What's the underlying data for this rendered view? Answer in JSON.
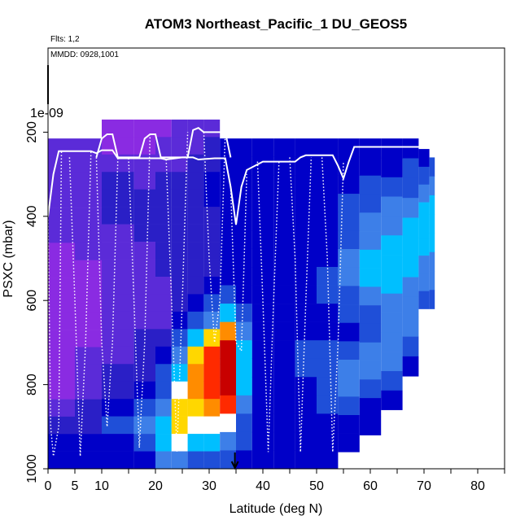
{
  "chart_data": {
    "type": "heatmap",
    "title": "ATOM3 Northeast_Pacific_1 DU_GEOS5",
    "flights_label": "Flts: 1,2",
    "date_label": "MMDD: 0928,1001",
    "xlabel": "Latitude (deg N)",
    "ylabel": "PSXC (mbar)",
    "xlim": [
      0,
      85
    ],
    "ylim": [
      1000,
      0
    ],
    "x_ticks": [
      0,
      5,
      10,
      20,
      30,
      40,
      50,
      60,
      70,
      80
    ],
    "y_ticks": [
      200,
      400,
      600,
      800,
      1000
    ],
    "color_scale_label": "1e-09",
    "marker_latitude": 34.8,
    "colormap": [
      "#8a2be2",
      "#5b2bd8",
      "#2a1fc6",
      "#0000c8",
      "#1f4fd8",
      "#3d7fe8",
      "#00bfff",
      "#ffffff",
      "#ffd700",
      "#ff8c00",
      "#ff2a00",
      "#c80000"
    ],
    "grid": false,
    "legend": "none",
    "cells": [
      {
        "x0": 0,
        "x1": 5,
        "p0": 215,
        "p1": 1000,
        "levels": [
          1,
          1,
          1,
          1,
          1,
          1,
          0,
          0,
          0,
          0,
          0,
          0,
          0,
          0,
          0,
          1,
          2,
          3,
          3
        ]
      },
      {
        "x0": 5,
        "x1": 10,
        "p0": 215,
        "p1": 1000,
        "levels": [
          1,
          1,
          1,
          1,
          1,
          1,
          1,
          0,
          0,
          0,
          0,
          0,
          1,
          1,
          1,
          2,
          2,
          3,
          3
        ]
      },
      {
        "x0": 10,
        "x1": 16,
        "p0": 170,
        "p1": 1000,
        "levels": [
          0,
          0,
          1,
          2,
          2,
          2,
          1,
          1,
          1,
          1,
          1,
          1,
          1,
          1,
          2,
          2,
          3,
          4,
          3,
          3
        ]
      },
      {
        "x0": 16,
        "x1": 20,
        "p0": 170,
        "p1": 1000,
        "levels": [
          0,
          0,
          1,
          1,
          2,
          2,
          2,
          1,
          1,
          1,
          1,
          1,
          2,
          2,
          2,
          3,
          4,
          5,
          4,
          3
        ]
      },
      {
        "x0": 20,
        "x1": 23,
        "p0": 170,
        "p1": 1000,
        "levels": [
          0,
          1,
          1,
          2,
          2,
          2,
          2,
          2,
          2,
          1,
          1,
          1,
          2,
          3,
          4,
          4,
          5,
          6,
          6,
          5
        ]
      },
      {
        "x0": 23,
        "x1": 26,
        "p0": 170,
        "p1": 1000,
        "levels": [
          1,
          1,
          1,
          2,
          2,
          2,
          2,
          2,
          2,
          2,
          2,
          3,
          4,
          5,
          6,
          7,
          8,
          8,
          7,
          5
        ]
      },
      {
        "x0": 26,
        "x1": 29,
        "p0": 170,
        "p1": 1000,
        "levels": [
          1,
          1,
          2,
          2,
          2,
          2,
          2,
          2,
          2,
          2,
          3,
          4,
          6,
          8,
          9,
          9,
          8,
          7,
          6,
          4
        ]
      },
      {
        "x0": 29,
        "x1": 32,
        "p0": 170,
        "p1": 1000,
        "levels": [
          1,
          2,
          2,
          3,
          3,
          2,
          2,
          2,
          2,
          3,
          4,
          5,
          8,
          10,
          10,
          10,
          9,
          7,
          6,
          4
        ]
      },
      {
        "x0": 32,
        "x1": 35,
        "p0": 215,
        "p1": 1000,
        "levels": [
          3,
          3,
          3,
          3,
          3,
          3,
          3,
          3,
          4,
          6,
          9,
          11,
          11,
          11,
          10,
          7,
          5,
          4
        ]
      },
      {
        "x0": 35,
        "x1": 38,
        "p0": 215,
        "p1": 1000,
        "levels": [
          3,
          3,
          3,
          3,
          3,
          3,
          3,
          3,
          3,
          4,
          5,
          6,
          6,
          6,
          5,
          4,
          4,
          3
        ]
      },
      {
        "x0": 38,
        "x1": 42,
        "p0": 215,
        "p1": 1000,
        "levels": [
          3,
          3,
          3,
          3,
          3,
          3,
          3,
          3,
          3,
          3,
          3,
          3,
          3,
          3,
          3,
          3,
          3,
          3
        ]
      },
      {
        "x0": 42,
        "x1": 46,
        "p0": 215,
        "p1": 1000,
        "levels": [
          3,
          3,
          3,
          3,
          3,
          3,
          3,
          3,
          3,
          3,
          3,
          3,
          3,
          3,
          3,
          3,
          3,
          3
        ]
      },
      {
        "x0": 46,
        "x1": 50,
        "p0": 215,
        "p1": 1000,
        "levels": [
          3,
          3,
          3,
          3,
          3,
          3,
          3,
          3,
          3,
          3,
          3,
          4,
          4,
          3,
          3,
          3,
          3,
          3
        ]
      },
      {
        "x0": 50,
        "x1": 54,
        "p0": 215,
        "p1": 1000,
        "levels": [
          3,
          3,
          3,
          3,
          3,
          3,
          3,
          4,
          4,
          3,
          3,
          4,
          4,
          4,
          4,
          3,
          3,
          3
        ]
      },
      {
        "x0": 54,
        "x1": 58,
        "p0": 215,
        "p1": 960,
        "levels": [
          3,
          3,
          3,
          4,
          4,
          4,
          5,
          5,
          4,
          4,
          3,
          4,
          5,
          5,
          4,
          3,
          3
        ]
      },
      {
        "x0": 58,
        "x1": 62,
        "p0": 215,
        "p1": 920,
        "levels": [
          3,
          3,
          4,
          4,
          5,
          5,
          6,
          6,
          5,
          4,
          4,
          5,
          5,
          4,
          3,
          3
        ]
      },
      {
        "x0": 62,
        "x1": 66,
        "p0": 215,
        "p1": 860,
        "levels": [
          3,
          3,
          4,
          5,
          5,
          6,
          6,
          6,
          5,
          5,
          5,
          5,
          4,
          3
        ]
      },
      {
        "x0": 66,
        "x1": 69,
        "p0": 215,
        "p1": 780,
        "levels": [
          3,
          4,
          4,
          5,
          6,
          6,
          6,
          5,
          5,
          5,
          4,
          3
        ]
      },
      {
        "x0": 69,
        "x1": 71,
        "p0": 240,
        "p1": 620,
        "levels": [
          3,
          4,
          5,
          6,
          6,
          6,
          5,
          5,
          4
        ]
      },
      {
        "x0": 71,
        "x1": 72,
        "p0": 260,
        "p1": 620,
        "levels": [
          4,
          5,
          6,
          6,
          6,
          5,
          5,
          4
        ]
      }
    ],
    "flight_track_solid": [
      [
        0,
        400
      ],
      [
        1,
        300
      ],
      [
        2,
        245
      ],
      [
        8,
        245
      ],
      [
        9,
        250
      ],
      [
        10,
        243
      ],
      [
        12,
        243
      ],
      [
        13,
        262
      ],
      [
        18,
        262
      ],
      [
        21,
        262
      ],
      [
        22,
        265
      ],
      [
        25,
        260
      ],
      [
        27,
        260
      ],
      [
        28,
        265
      ],
      [
        31,
        262
      ],
      [
        33,
        262
      ],
      [
        34,
        330
      ],
      [
        35,
        420
      ],
      [
        36,
        330
      ],
      [
        37,
        290
      ],
      [
        40,
        270
      ],
      [
        46,
        270
      ],
      [
        47,
        260
      ],
      [
        48,
        255
      ],
      [
        53,
        255
      ],
      [
        54,
        280
      ],
      [
        55,
        310
      ],
      [
        56,
        270
      ],
      [
        57,
        235
      ],
      [
        70,
        235
      ]
    ],
    "flight_track_solid_upper": [
      [
        9,
        260
      ],
      [
        10,
        215
      ],
      [
        11,
        205
      ],
      [
        12,
        205
      ],
      [
        13,
        260
      ],
      [
        17,
        260
      ],
      [
        18,
        215
      ],
      [
        19,
        205
      ],
      [
        20,
        205
      ],
      [
        21,
        260
      ],
      [
        26,
        260
      ],
      [
        27,
        195
      ],
      [
        28,
        190
      ],
      [
        29,
        200
      ],
      [
        33,
        200
      ],
      [
        34,
        260
      ]
    ],
    "flight_track_dotted": [
      [
        [
          0,
          400
        ],
        [
          0.5,
          900
        ],
        [
          1,
          970
        ],
        [
          2,
          900
        ],
        [
          2.5,
          245
        ]
      ],
      [
        [
          4,
          260
        ],
        [
          5,
          600
        ],
        [
          6,
          970
        ],
        [
          7,
          700
        ],
        [
          8,
          245
        ]
      ],
      [
        [
          9,
          260
        ],
        [
          10,
          700
        ],
        [
          11,
          900
        ],
        [
          12,
          700
        ],
        [
          13,
          262
        ]
      ],
      [
        [
          15,
          262
        ],
        [
          16,
          600
        ],
        [
          17,
          950
        ],
        [
          18,
          700
        ],
        [
          19,
          205
        ]
      ],
      [
        [
          22,
          265
        ],
        [
          23,
          600
        ],
        [
          24,
          960
        ],
        [
          25,
          600
        ],
        [
          26,
          200
        ]
      ],
      [
        [
          29,
          200
        ],
        [
          30,
          500
        ],
        [
          31,
          700
        ],
        [
          32,
          600
        ],
        [
          33,
          200
        ]
      ],
      [
        [
          34,
          330
        ],
        [
          35,
          700
        ],
        [
          36,
          720
        ],
        [
          37,
          300
        ]
      ],
      [
        [
          39,
          270
        ],
        [
          40,
          600
        ],
        [
          41,
          960
        ],
        [
          42,
          600
        ],
        [
          43,
          270
        ]
      ],
      [
        [
          45,
          260
        ],
        [
          46,
          500
        ],
        [
          47,
          960
        ],
        [
          48,
          600
        ],
        [
          49,
          260
        ]
      ],
      [
        [
          51,
          260
        ],
        [
          52,
          500
        ],
        [
          53,
          960
        ],
        [
          54,
          700
        ],
        [
          55,
          270
        ]
      ]
    ]
  }
}
